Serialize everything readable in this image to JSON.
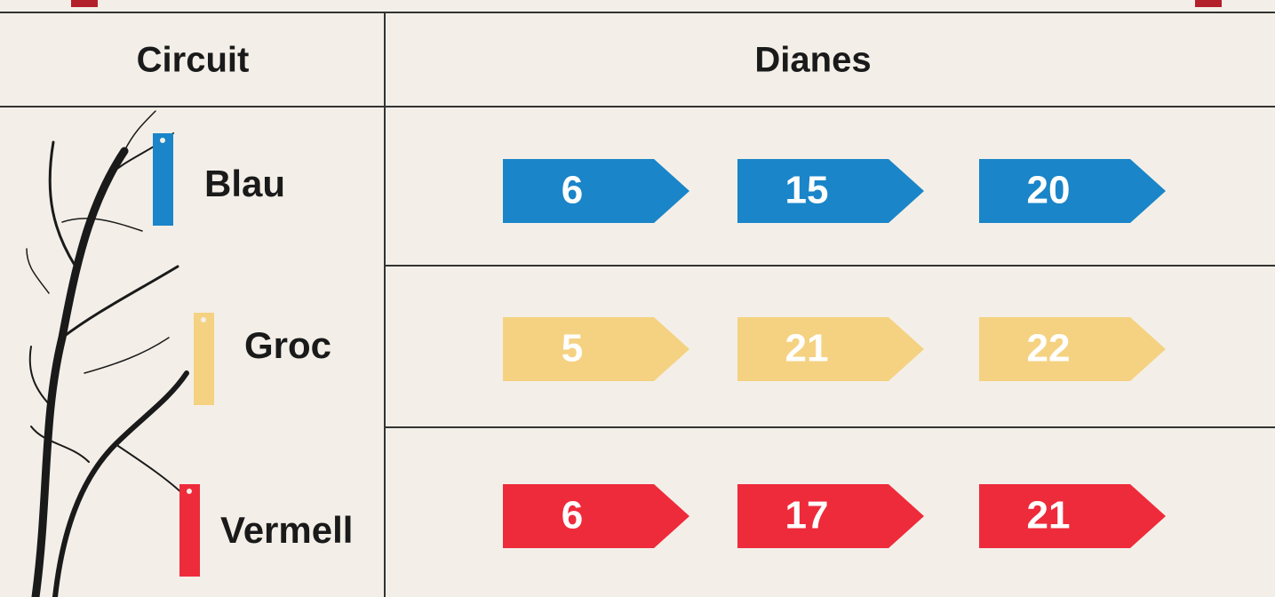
{
  "table": {
    "header": [
      "Circuit",
      "Dianes"
    ],
    "rows": [
      {
        "circuit": "Blau",
        "color": "#1a85c8",
        "dianes": [
          6,
          15,
          20
        ]
      },
      {
        "circuit": "Groc",
        "color": "#f5d282",
        "dianes": [
          5,
          21,
          22
        ]
      },
      {
        "circuit": "Vermell",
        "color": "#ee2b3b",
        "dianes": [
          6,
          17,
          21
        ]
      }
    ]
  }
}
